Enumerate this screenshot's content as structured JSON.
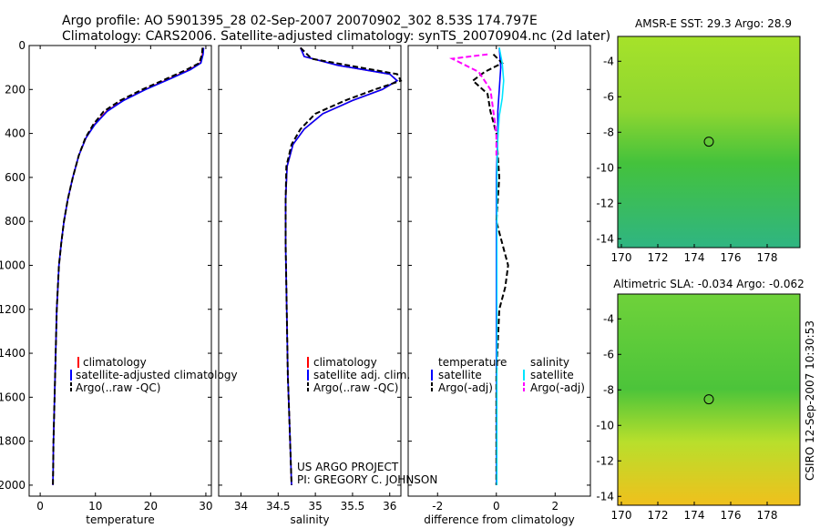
{
  "header": {
    "line1": "Argo profile: AO 5901395_28 02-Sep-2007 20070902_302 8.53S 174.797E",
    "line2": "Climatology: CARS2006. Satellite-adjusted climatology: synTS_20070904.nc (2d later)"
  },
  "side_label": "CSIRO 12-Sep-2007 10:30:53",
  "credit": {
    "line1": "US ARGO PROJECT",
    "line2": "PI: GREGORY C. JOHNSON"
  },
  "colors": {
    "clim": "#ff0000",
    "sat": "#0000ff",
    "argo": "#000000",
    "sal_sat": "#00e5ff",
    "sal_argo": "#ff00ff"
  },
  "chart_data": [
    {
      "id": "temperature",
      "type": "line",
      "xlabel": "temperature",
      "ylabel": "",
      "xlim": [
        -2,
        31
      ],
      "ylim": [
        2050,
        0
      ],
      "xticks": [
        0,
        10,
        20,
        30
      ],
      "yticks": [
        0,
        200,
        400,
        600,
        800,
        1000,
        1200,
        1400,
        1600,
        1800,
        2000
      ],
      "series": [
        {
          "name": "climatology",
          "color": "#ff0000",
          "dash": "",
          "x": [
            29.5,
            29.4,
            29.0,
            27.0,
            23.5,
            19.0,
            15.0,
            12.0,
            9.8,
            8.3,
            7.0,
            5.9,
            5.0,
            4.3,
            3.8,
            3.4,
            3.0,
            2.8,
            2.6,
            2.4,
            2.3
          ],
          "y": [
            10,
            40,
            80,
            110,
            150,
            200,
            250,
            300,
            360,
            420,
            500,
            600,
            700,
            800,
            900,
            1000,
            1200,
            1400,
            1600,
            1800,
            2000
          ]
        },
        {
          "name": "satellite-adjusted climatology",
          "color": "#0000ff",
          "dash": "",
          "x": [
            29.6,
            29.5,
            29.1,
            27.2,
            23.7,
            19.1,
            15.1,
            12.1,
            9.9,
            8.3,
            7.0,
            5.9,
            5.0,
            4.3,
            3.8,
            3.4,
            3.0,
            2.8,
            2.6,
            2.4,
            2.3
          ],
          "y": [
            10,
            40,
            80,
            110,
            150,
            200,
            250,
            300,
            360,
            420,
            500,
            600,
            700,
            800,
            900,
            1000,
            1200,
            1400,
            1600,
            1800,
            2000
          ]
        },
        {
          "name": "Argo(..raw -QC)",
          "color": "#000000",
          "dash": "6,3",
          "x": [
            29.4,
            29.3,
            28.8,
            26.5,
            23.0,
            18.5,
            14.5,
            11.5,
            9.6,
            8.2,
            7.0,
            5.9,
            5.0,
            4.3,
            3.8,
            3.4,
            3.0,
            2.8,
            2.6,
            2.4,
            2.3
          ],
          "y": [
            10,
            40,
            80,
            110,
            150,
            200,
            250,
            300,
            360,
            420,
            500,
            600,
            700,
            800,
            900,
            1000,
            1200,
            1400,
            1600,
            1800,
            2000
          ]
        }
      ],
      "legend": [
        "climatology",
        "satellite-adjusted climatology",
        "Argo(..raw -QC)"
      ]
    },
    {
      "id": "salinity",
      "type": "line",
      "xlabel": "salinity",
      "ylabel": "",
      "xlim": [
        33.7,
        36.15
      ],
      "ylim": [
        2050,
        0
      ],
      "xticks": [
        34,
        34.5,
        35,
        35.5,
        36
      ],
      "series": [
        {
          "name": "climatology",
          "color": "#ff0000",
          "dash": "",
          "x": [
            34.8,
            34.85,
            35.3,
            36.0,
            36.1,
            35.9,
            35.5,
            35.1,
            34.85,
            34.7,
            34.62,
            34.6,
            34.6,
            34.61,
            34.62,
            34.63,
            34.65,
            34.67,
            34.68
          ],
          "y": [
            10,
            50,
            90,
            130,
            160,
            200,
            250,
            310,
            380,
            450,
            550,
            700,
            900,
            1100,
            1300,
            1500,
            1700,
            1900,
            2000
          ]
        },
        {
          "name": "satellite adj. clim.",
          "color": "#0000ff",
          "dash": "",
          "x": [
            34.8,
            34.85,
            35.3,
            36.0,
            36.1,
            35.9,
            35.5,
            35.1,
            34.85,
            34.7,
            34.62,
            34.6,
            34.6,
            34.61,
            34.62,
            34.63,
            34.65,
            34.67,
            34.68
          ],
          "y": [
            10,
            50,
            90,
            130,
            160,
            200,
            250,
            310,
            380,
            450,
            550,
            700,
            900,
            1100,
            1300,
            1500,
            1700,
            1900,
            2000
          ]
        },
        {
          "name": "Argo(..raw -QC)",
          "color": "#000000",
          "dash": "6,3",
          "x": [
            34.8,
            34.95,
            35.6,
            36.1,
            36.15,
            35.8,
            35.4,
            35.0,
            34.8,
            34.68,
            34.61,
            34.6,
            34.6,
            34.61,
            34.62,
            34.63,
            34.65,
            34.67,
            34.68
          ],
          "y": [
            10,
            60,
            100,
            130,
            160,
            200,
            250,
            310,
            380,
            450,
            550,
            700,
            900,
            1100,
            1300,
            1500,
            1700,
            1900,
            2000
          ]
        }
      ],
      "legend": [
        "climatology",
        "satellite adj. clim.",
        "Argo(..raw -QC)"
      ]
    },
    {
      "id": "difference",
      "type": "line",
      "xlabel": "difference from climatology",
      "ylabel": "",
      "xlim": [
        -3,
        3.2
      ],
      "ylim": [
        2050,
        0
      ],
      "xticks": [
        -2,
        0,
        2
      ],
      "legend_headers": [
        "temperature",
        "salinity"
      ],
      "series": [
        {
          "name": "satellite",
          "color": "#0000ff",
          "dash": "",
          "x": [
            0.1,
            0.15,
            0.1,
            0.05,
            0.05,
            0.0,
            0.0,
            0.0,
            0.0,
            0.0,
            0.0,
            0.0
          ],
          "y": [
            10,
            100,
            200,
            300,
            400,
            600,
            800,
            1000,
            1200,
            1500,
            1800,
            2000
          ]
        },
        {
          "name": "Argo(-adj)",
          "color": "#000000",
          "dash": "6,3",
          "x": [
            -0.1,
            0.2,
            -0.4,
            -0.8,
            -0.3,
            -0.2,
            0.0,
            0.1,
            0.0,
            0.2,
            0.4,
            0.3,
            0.1,
            0.0,
            0.0,
            0.0
          ],
          "y": [
            40,
            80,
            120,
            160,
            220,
            300,
            400,
            600,
            800,
            900,
            1000,
            1100,
            1200,
            1500,
            1800,
            2000
          ]
        },
        {
          "name": "satellite",
          "color": "#00e5ff",
          "dash": "",
          "x": [
            0.1,
            0.2,
            0.25,
            0.2,
            0.1,
            0.05,
            0.02,
            0.02,
            0.02,
            0.02,
            0.02,
            0.02
          ],
          "y": [
            10,
            80,
            160,
            240,
            320,
            420,
            600,
            800,
            1000,
            1400,
            1800,
            2000
          ]
        },
        {
          "name": "Argo(-adj)",
          "color": "#ff00ff",
          "dash": "6,3",
          "x": [
            -0.3,
            -1.5,
            -1.2,
            -0.6,
            -0.2,
            -0.1,
            0.0,
            0.0
          ],
          "y": [
            40,
            60,
            80,
            120,
            200,
            300,
            400,
            500
          ]
        }
      ]
    },
    {
      "id": "sst_map",
      "type": "heatmap",
      "title_prefix": "AMSR-E SST:",
      "title_value": "29.3",
      "title_mid": "Argo:",
      "title_argo": "28.9",
      "xticks": [
        170,
        172,
        174,
        176,
        178
      ],
      "yticks": [
        -4,
        -6,
        -8,
        -10,
        -12,
        -14
      ],
      "xlim": [
        169.8,
        179.8
      ],
      "ylim": [
        -14.5,
        -2.6
      ],
      "marker": {
        "lon": 174.8,
        "lat": -8.53
      }
    },
    {
      "id": "sla_map",
      "type": "heatmap",
      "title_prefix": "Altimetric SLA:",
      "title_value": "-0.034",
      "title_mid": "Argo:",
      "title_argo": "-0.062",
      "xticks": [
        170,
        172,
        174,
        176,
        178
      ],
      "yticks": [
        -4,
        -6,
        -8,
        -10,
        -12,
        -14
      ],
      "xlim": [
        169.8,
        179.8
      ],
      "ylim": [
        -14.5,
        -2.6
      ],
      "marker": {
        "lon": 174.8,
        "lat": -8.53
      }
    }
  ]
}
